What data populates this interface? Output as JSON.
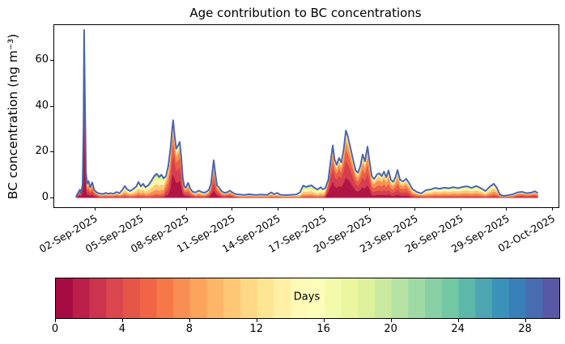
{
  "chart_data": {
    "type": "area",
    "title": "Age contribution to BC concentrations",
    "ylabel": "BC concentration (ng m⁻³)",
    "x_unit": "days since 01-Sep-2025 00:00",
    "xlim": [
      -1.68,
      31.4
    ],
    "ylim": [
      -4.07,
      75.6
    ],
    "yticks": [
      0,
      20,
      40,
      60
    ],
    "xticks": [
      {
        "u": 1,
        "label": "02-Sep-2025"
      },
      {
        "u": 4,
        "label": "05-Sep-2025"
      },
      {
        "u": 7,
        "label": "08-Sep-2025"
      },
      {
        "u": 10,
        "label": "11-Sep-2025"
      },
      {
        "u": 13,
        "label": "14-Sep-2025"
      },
      {
        "u": 16,
        "label": "17-Sep-2025"
      },
      {
        "u": 19,
        "label": "20-Sep-2025"
      },
      {
        "u": 22,
        "label": "23-Sep-2025"
      },
      {
        "u": 25,
        "label": "26-Sep-2025"
      },
      {
        "u": 28,
        "label": "29-Sep-2025"
      },
      {
        "u": 31,
        "label": "02-Oct-2025"
      }
    ],
    "total_line_color": "#4a63ac",
    "colormap": {
      "name": "Spectral",
      "anchors": [
        "#9e0142",
        "#d53e4f",
        "#f46d43",
        "#fdae61",
        "#fee08b",
        "#ffffbf",
        "#e6f598",
        "#abdda4",
        "#66c2a5",
        "#3288bd",
        "#5e4fa2"
      ],
      "n_bins": 30,
      "vmin": 0,
      "vmax": 30
    },
    "colorbar": {
      "label": "Days",
      "ticks": [
        0,
        4,
        8,
        12,
        16,
        20,
        24,
        28
      ]
    },
    "age_bins_days": [
      [
        0,
        2
      ],
      [
        2,
        4
      ],
      [
        4,
        6
      ],
      [
        6,
        9
      ],
      [
        9,
        12
      ],
      [
        12,
        16
      ],
      [
        16,
        20
      ],
      [
        20,
        24
      ],
      [
        24,
        30
      ]
    ],
    "age_profiles": [
      [
        0.5,
        0.2,
        0.11,
        0.08,
        0.05,
        0.03,
        0.02,
        0.01,
        0.0
      ],
      [
        0.3,
        0.24,
        0.17,
        0.12,
        0.08,
        0.05,
        0.03,
        0.01,
        0.0
      ],
      [
        0.12,
        0.18,
        0.21,
        0.2,
        0.14,
        0.08,
        0.04,
        0.02,
        0.01
      ],
      [
        0.05,
        0.1,
        0.15,
        0.22,
        0.21,
        0.14,
        0.07,
        0.04,
        0.02
      ],
      [
        0.02,
        0.05,
        0.09,
        0.17,
        0.24,
        0.22,
        0.12,
        0.06,
        0.03
      ],
      [
        0.01,
        0.03,
        0.06,
        0.12,
        0.19,
        0.25,
        0.18,
        0.1,
        0.06
      ],
      [
        0.0,
        0.02,
        0.04,
        0.09,
        0.15,
        0.22,
        0.22,
        0.15,
        0.11
      ]
    ],
    "samples_format": [
      "day_since_01_sep",
      "total_ng_m3",
      "age_profile_index"
    ],
    "samples": [
      [
        -0.25,
        0.5,
        1.2
      ],
      [
        -0.12,
        2.2,
        1.2
      ],
      [
        0.0,
        3.6,
        1.0
      ],
      [
        0.08,
        2.0,
        1.0
      ],
      [
        0.18,
        6,
        0.4
      ],
      [
        0.24,
        32,
        0.4
      ],
      [
        0.28,
        73.5,
        0.4
      ],
      [
        0.34,
        42,
        0.4
      ],
      [
        0.4,
        11,
        0.6
      ],
      [
        0.48,
        6.2,
        1.6
      ],
      [
        0.57,
        7.4,
        1.6
      ],
      [
        0.68,
        4.6,
        1.6
      ],
      [
        0.81,
        6.8,
        1.6
      ],
      [
        0.95,
        3.5,
        1.6
      ],
      [
        1.1,
        2.4,
        1.8
      ],
      [
        1.3,
        1.9,
        2.6
      ],
      [
        1.5,
        1.7,
        2.6
      ],
      [
        1.7,
        2.2,
        2.6
      ],
      [
        1.85,
        1.8,
        2.6
      ],
      [
        2.0,
        2.1,
        2.6
      ],
      [
        2.2,
        1.8,
        2.6
      ],
      [
        2.4,
        2.6,
        2.6
      ],
      [
        2.6,
        2.1,
        2.8
      ],
      [
        2.8,
        3.6,
        3.4
      ],
      [
        2.95,
        5.2,
        3.4
      ],
      [
        3.1,
        3.8,
        3.4
      ],
      [
        3.3,
        3.0,
        3.5
      ],
      [
        3.5,
        3.9,
        3.8
      ],
      [
        3.7,
        5.0,
        3.8
      ],
      [
        3.85,
        7.0,
        3.8
      ],
      [
        4.0,
        5.1,
        3.8
      ],
      [
        4.15,
        6.2,
        3.8
      ],
      [
        4.3,
        4.7,
        3.9
      ],
      [
        4.5,
        5.6,
        4.0
      ],
      [
        4.7,
        7.6,
        4.0
      ],
      [
        4.9,
        9.8,
        4.0
      ],
      [
        5.05,
        10.6,
        4.0
      ],
      [
        5.2,
        9.2,
        4.0
      ],
      [
        5.35,
        10.2,
        4.0
      ],
      [
        5.5,
        8.6,
        3.6
      ],
      [
        5.65,
        9.5,
        2.2
      ],
      [
        5.8,
        14,
        2.2
      ],
      [
        5.95,
        22,
        1.6
      ],
      [
        6.05,
        30,
        1.0
      ],
      [
        6.12,
        34,
        1.0
      ],
      [
        6.22,
        27,
        1.0
      ],
      [
        6.32,
        21.5,
        1.0
      ],
      [
        6.45,
        23,
        1.0
      ],
      [
        6.55,
        24.5,
        1.0
      ],
      [
        6.65,
        18,
        1.2
      ],
      [
        6.75,
        9,
        1.6
      ],
      [
        6.85,
        5.2,
        1.6
      ],
      [
        6.95,
        4.4,
        1.6
      ],
      [
        7.1,
        6.6,
        2.1
      ],
      [
        7.25,
        4.0,
        2.1
      ],
      [
        7.4,
        2.7,
        2.1
      ],
      [
        7.6,
        2.4,
        2.8
      ],
      [
        7.8,
        3.2,
        2.8
      ],
      [
        8.0,
        2.5,
        2.8
      ],
      [
        8.2,
        2.3,
        2.8
      ],
      [
        8.45,
        3.4,
        2.4
      ],
      [
        8.6,
        6.0,
        1.6
      ],
      [
        8.78,
        16.5,
        1.6
      ],
      [
        8.9,
        10,
        1.6
      ],
      [
        9.0,
        5.5,
        1.6
      ],
      [
        9.15,
        4.4,
        1.8
      ],
      [
        9.3,
        2.9,
        2.1
      ],
      [
        9.5,
        2.2,
        2.1
      ],
      [
        9.7,
        2.6,
        2.1
      ],
      [
        9.85,
        3.2,
        2.1
      ],
      [
        10.0,
        2.4,
        2.1
      ],
      [
        10.2,
        1.7,
        2.5
      ],
      [
        10.5,
        1.5,
        3.2
      ],
      [
        10.8,
        1.3,
        3.2
      ],
      [
        11.1,
        1.6,
        3.2
      ],
      [
        11.5,
        1.3,
        3.2
      ],
      [
        11.9,
        1.5,
        3.2
      ],
      [
        12.3,
        1.3,
        3.2
      ],
      [
        12.55,
        2.4,
        3.2
      ],
      [
        12.75,
        1.6,
        3.2
      ],
      [
        12.95,
        2.2,
        3.2
      ],
      [
        13.15,
        1.4,
        3.2
      ],
      [
        13.5,
        1.2,
        3.2
      ],
      [
        13.9,
        1.4,
        3.2
      ],
      [
        14.2,
        1.5,
        3.6
      ],
      [
        14.45,
        2.5,
        4.3
      ],
      [
        14.65,
        5.4,
        4.3
      ],
      [
        14.85,
        4.8,
        4.3
      ],
      [
        15.0,
        5.2,
        4.3
      ],
      [
        15.2,
        5.5,
        4.3
      ],
      [
        15.4,
        4.4,
        4.3
      ],
      [
        15.6,
        3.7,
        4.3
      ],
      [
        15.8,
        4.7,
        4.2
      ],
      [
        15.95,
        3.8,
        4.0
      ],
      [
        16.1,
        4.3,
        3.0
      ],
      [
        16.3,
        8.0,
        1.0
      ],
      [
        16.45,
        16,
        1.0
      ],
      [
        16.59,
        23,
        1.0
      ],
      [
        16.7,
        17,
        1.0
      ],
      [
        16.85,
        14.5,
        1.0
      ],
      [
        17.0,
        17.5,
        1.0
      ],
      [
        17.15,
        15.5,
        1.0
      ],
      [
        17.3,
        21,
        1.0
      ],
      [
        17.45,
        29.5,
        1.0
      ],
      [
        17.58,
        27,
        1.0
      ],
      [
        17.75,
        22,
        1.0
      ],
      [
        17.95,
        16,
        1.1
      ],
      [
        18.1,
        12,
        1.2
      ],
      [
        18.25,
        11,
        1.3
      ],
      [
        18.4,
        14,
        1.3
      ],
      [
        18.55,
        19,
        1.3
      ],
      [
        18.7,
        16,
        1.3
      ],
      [
        18.87,
        22.5,
        1.3
      ],
      [
        19.0,
        16,
        1.4
      ],
      [
        19.15,
        9.5,
        2.0
      ],
      [
        19.3,
        8.3,
        2.0
      ],
      [
        19.5,
        10.3,
        2.0
      ],
      [
        19.65,
        10.8,
        2.0
      ],
      [
        19.8,
        9.5,
        2.0
      ],
      [
        19.95,
        11.5,
        2.0
      ],
      [
        20.1,
        9.0,
        2.0
      ],
      [
        20.25,
        12,
        2.0
      ],
      [
        20.4,
        8.0,
        2.0
      ],
      [
        20.55,
        7.0,
        2.0
      ],
      [
        20.7,
        9.0,
        2.0
      ],
      [
        20.84,
        12.2,
        2.0
      ],
      [
        21.0,
        8.0,
        2.0
      ],
      [
        21.2,
        7.2,
        2.0
      ],
      [
        21.4,
        8.4,
        2.0
      ],
      [
        21.6,
        6.5,
        2.2
      ],
      [
        21.8,
        4.0,
        2.7
      ],
      [
        22.1,
        2.6,
        2.7
      ],
      [
        22.4,
        2.0,
        2.7
      ],
      [
        22.7,
        3.4,
        3.6
      ],
      [
        23.0,
        3.7,
        3.6
      ],
      [
        23.3,
        4.4,
        3.6
      ],
      [
        23.6,
        4.0,
        3.6
      ],
      [
        23.9,
        4.5,
        3.6
      ],
      [
        24.2,
        4.2,
        3.6
      ],
      [
        24.5,
        4.7,
        3.6
      ],
      [
        24.8,
        4.3,
        3.6
      ],
      [
        25.1,
        4.8,
        3.6
      ],
      [
        25.4,
        5.1,
        3.6
      ],
      [
        25.7,
        4.4,
        3.6
      ],
      [
        26.0,
        5.2,
        3.6
      ],
      [
        26.3,
        4.3,
        3.6
      ],
      [
        26.6,
        3.0,
        3.6
      ],
      [
        26.9,
        5.0,
        3.6
      ],
      [
        27.15,
        6.2,
        3.4
      ],
      [
        27.35,
        4.5,
        3.2
      ],
      [
        27.55,
        1.5,
        2.6
      ],
      [
        27.8,
        0.9,
        2.6
      ],
      [
        28.1,
        1.2,
        2.6
      ],
      [
        28.4,
        1.6,
        2.6
      ],
      [
        28.7,
        2.4,
        2.2
      ],
      [
        29.0,
        2.7,
        2.2
      ],
      [
        29.3,
        2.1,
        2.2
      ],
      [
        29.6,
        2.3,
        2.2
      ],
      [
        29.85,
        2.9,
        2.2
      ],
      [
        30.05,
        2.1,
        2.2
      ]
    ]
  }
}
